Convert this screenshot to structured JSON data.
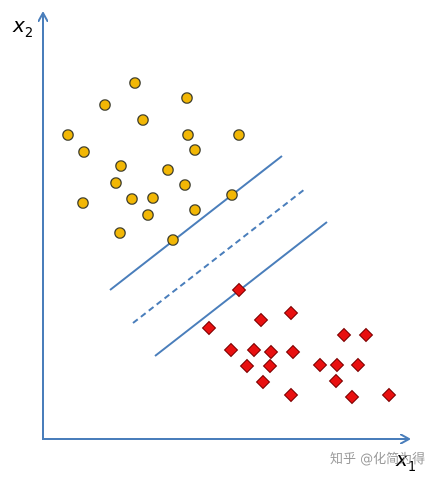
{
  "axes": {
    "x_label": "x",
    "x_subscript": "1",
    "y_label": "x",
    "y_subscript": "2"
  },
  "watermark": "知乎 @化简为得",
  "colors": {
    "axis": "#4a7ebb",
    "boundary": "#4a7ebb",
    "class_a_fill": "#f2b705",
    "class_a_stroke": "#3a3a2a",
    "class_b_fill": "#e81010",
    "class_b_stroke": "#7a0000"
  },
  "legend": {
    "class_a_shape": "circle",
    "class_b_shape": "diamond"
  }
}
